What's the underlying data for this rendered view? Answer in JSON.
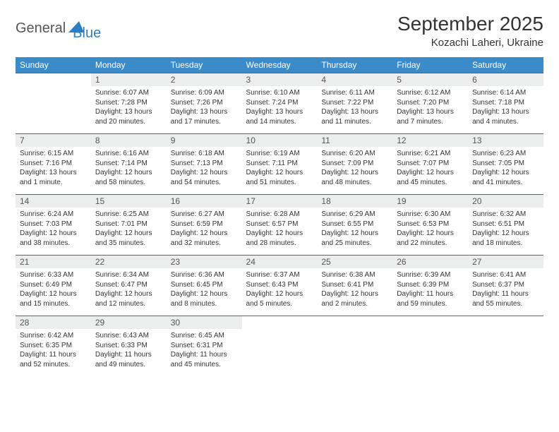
{
  "logo": {
    "text1": "General",
    "text2": "Blue"
  },
  "title": "September 2025",
  "subtitle": "Kozachi Laheri, Ukraine",
  "colors": {
    "header_bg": "#3b8bc9",
    "header_text": "#ffffff",
    "daynum_bg": "#eceded",
    "border": "#2d6fa5",
    "body_text": "#333333"
  },
  "weekdays": [
    "Sunday",
    "Monday",
    "Tuesday",
    "Wednesday",
    "Thursday",
    "Friday",
    "Saturday"
  ],
  "start_offset": 1,
  "days": [
    {
      "n": 1,
      "sunrise": "6:07 AM",
      "sunset": "7:28 PM",
      "daylight": "13 hours and 20 minutes."
    },
    {
      "n": 2,
      "sunrise": "6:09 AM",
      "sunset": "7:26 PM",
      "daylight": "13 hours and 17 minutes."
    },
    {
      "n": 3,
      "sunrise": "6:10 AM",
      "sunset": "7:24 PM",
      "daylight": "13 hours and 14 minutes."
    },
    {
      "n": 4,
      "sunrise": "6:11 AM",
      "sunset": "7:22 PM",
      "daylight": "13 hours and 11 minutes."
    },
    {
      "n": 5,
      "sunrise": "6:12 AM",
      "sunset": "7:20 PM",
      "daylight": "13 hours and 7 minutes."
    },
    {
      "n": 6,
      "sunrise": "6:14 AM",
      "sunset": "7:18 PM",
      "daylight": "13 hours and 4 minutes."
    },
    {
      "n": 7,
      "sunrise": "6:15 AM",
      "sunset": "7:16 PM",
      "daylight": "13 hours and 1 minute."
    },
    {
      "n": 8,
      "sunrise": "6:16 AM",
      "sunset": "7:14 PM",
      "daylight": "12 hours and 58 minutes."
    },
    {
      "n": 9,
      "sunrise": "6:18 AM",
      "sunset": "7:13 PM",
      "daylight": "12 hours and 54 minutes."
    },
    {
      "n": 10,
      "sunrise": "6:19 AM",
      "sunset": "7:11 PM",
      "daylight": "12 hours and 51 minutes."
    },
    {
      "n": 11,
      "sunrise": "6:20 AM",
      "sunset": "7:09 PM",
      "daylight": "12 hours and 48 minutes."
    },
    {
      "n": 12,
      "sunrise": "6:21 AM",
      "sunset": "7:07 PM",
      "daylight": "12 hours and 45 minutes."
    },
    {
      "n": 13,
      "sunrise": "6:23 AM",
      "sunset": "7:05 PM",
      "daylight": "12 hours and 41 minutes."
    },
    {
      "n": 14,
      "sunrise": "6:24 AM",
      "sunset": "7:03 PM",
      "daylight": "12 hours and 38 minutes."
    },
    {
      "n": 15,
      "sunrise": "6:25 AM",
      "sunset": "7:01 PM",
      "daylight": "12 hours and 35 minutes."
    },
    {
      "n": 16,
      "sunrise": "6:27 AM",
      "sunset": "6:59 PM",
      "daylight": "12 hours and 32 minutes."
    },
    {
      "n": 17,
      "sunrise": "6:28 AM",
      "sunset": "6:57 PM",
      "daylight": "12 hours and 28 minutes."
    },
    {
      "n": 18,
      "sunrise": "6:29 AM",
      "sunset": "6:55 PM",
      "daylight": "12 hours and 25 minutes."
    },
    {
      "n": 19,
      "sunrise": "6:30 AM",
      "sunset": "6:53 PM",
      "daylight": "12 hours and 22 minutes."
    },
    {
      "n": 20,
      "sunrise": "6:32 AM",
      "sunset": "6:51 PM",
      "daylight": "12 hours and 18 minutes."
    },
    {
      "n": 21,
      "sunrise": "6:33 AM",
      "sunset": "6:49 PM",
      "daylight": "12 hours and 15 minutes."
    },
    {
      "n": 22,
      "sunrise": "6:34 AM",
      "sunset": "6:47 PM",
      "daylight": "12 hours and 12 minutes."
    },
    {
      "n": 23,
      "sunrise": "6:36 AM",
      "sunset": "6:45 PM",
      "daylight": "12 hours and 8 minutes."
    },
    {
      "n": 24,
      "sunrise": "6:37 AM",
      "sunset": "6:43 PM",
      "daylight": "12 hours and 5 minutes."
    },
    {
      "n": 25,
      "sunrise": "6:38 AM",
      "sunset": "6:41 PM",
      "daylight": "12 hours and 2 minutes."
    },
    {
      "n": 26,
      "sunrise": "6:39 AM",
      "sunset": "6:39 PM",
      "daylight": "11 hours and 59 minutes."
    },
    {
      "n": 27,
      "sunrise": "6:41 AM",
      "sunset": "6:37 PM",
      "daylight": "11 hours and 55 minutes."
    },
    {
      "n": 28,
      "sunrise": "6:42 AM",
      "sunset": "6:35 PM",
      "daylight": "11 hours and 52 minutes."
    },
    {
      "n": 29,
      "sunrise": "6:43 AM",
      "sunset": "6:33 PM",
      "daylight": "11 hours and 49 minutes."
    },
    {
      "n": 30,
      "sunrise": "6:45 AM",
      "sunset": "6:31 PM",
      "daylight": "11 hours and 45 minutes."
    }
  ],
  "labels": {
    "sunrise": "Sunrise:",
    "sunset": "Sunset:",
    "daylight": "Daylight:"
  }
}
